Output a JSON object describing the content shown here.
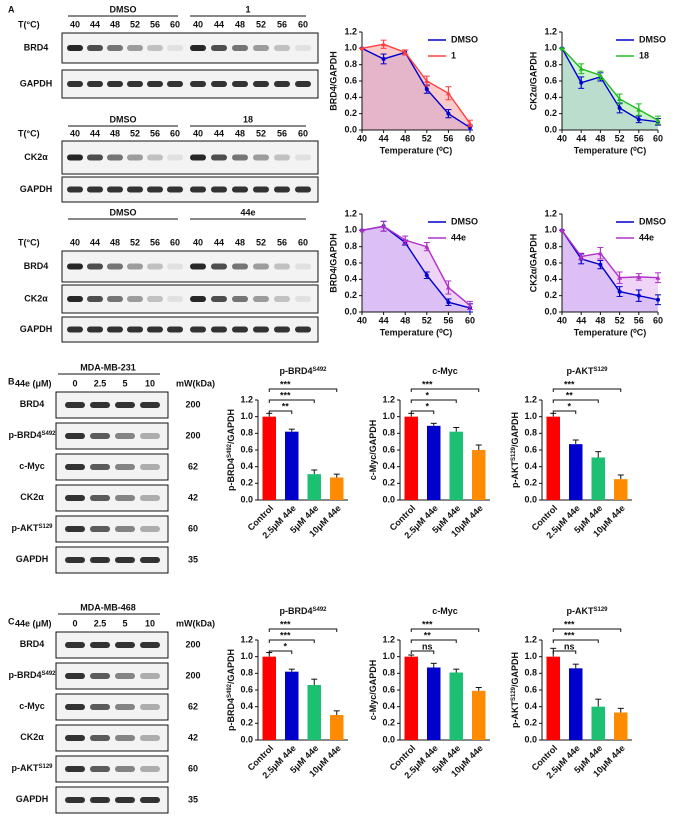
{
  "panel_labels": [
    "A",
    "B",
    "C"
  ],
  "blots_a": [
    {
      "conditions": [
        "DMSO",
        "1"
      ],
      "temp_label": "T(°C)",
      "temps": [
        "40",
        "44",
        "48",
        "52",
        "56",
        "60"
      ],
      "rows": [
        "BRD4",
        "GAPDH"
      ]
    },
    {
      "conditions": [
        "DMSO",
        "18"
      ],
      "temp_label": "T(°C)",
      "temps": [
        "40",
        "44",
        "48",
        "52",
        "56",
        "60"
      ],
      "rows": [
        "CK2α",
        "GAPDH"
      ]
    },
    {
      "conditions": [
        "DMSO",
        "44e"
      ],
      "temp_label": "T(°C)",
      "temps": [
        "40",
        "44",
        "48",
        "52",
        "56",
        "60"
      ],
      "rows": [
        "BRD4",
        "CK2α",
        "GAPDH"
      ]
    }
  ],
  "blots_bc": [
    {
      "cell_line": "MDA-MB-231",
      "dose_label": "44e (μM)",
      "doses": [
        "0",
        "2.5",
        "5",
        "10"
      ],
      "mw_label": "mW(kDa)",
      "rows": [
        {
          "name": "BRD4",
          "mw": "200"
        },
        {
          "name": "p-BRD4",
          "sup": "S492",
          "mw": "200"
        },
        {
          "name": "c-Myc",
          "mw": "62"
        },
        {
          "name": "CK2α",
          "mw": "42"
        },
        {
          "name": "p-AKT",
          "sup": "S129",
          "mw": "60"
        },
        {
          "name": "GAPDH",
          "mw": "35"
        }
      ]
    },
    {
      "cell_line": "MDA-MB-468",
      "dose_label": "44e (μM)",
      "doses": [
        "0",
        "2.5",
        "5",
        "10"
      ],
      "mw_label": "mW(kDa)",
      "rows": [
        {
          "name": "BRD4",
          "mw": "200"
        },
        {
          "name": "p-BRD4",
          "sup": "S492",
          "mw": "200"
        },
        {
          "name": "c-Myc",
          "mw": "62"
        },
        {
          "name": "CK2α",
          "mw": "42"
        },
        {
          "name": "p-AKT",
          "sup": "S129",
          "mw": "60"
        },
        {
          "name": "GAPDH",
          "mw": "35"
        }
      ]
    }
  ],
  "chart_data": [
    {
      "type": "line",
      "ylabel": "BRD4/GAPDH",
      "xlabel": "Temperature (⁰C)",
      "x": [
        40,
        44,
        48,
        52,
        56,
        60
      ],
      "xlim": [
        40,
        60
      ],
      "xticks": [
        40,
        44,
        48,
        52,
        56,
        60
      ],
      "ylim": [
        0,
        1.2
      ],
      "yticks": [
        {
          "value": 0,
          "label": "0.0"
        },
        0.2,
        0.4,
        0.6,
        0.8,
        {
          "value": 1,
          "label": "1.0"
        },
        1.2
      ],
      "series": [
        {
          "name": "DMSO",
          "color": "#0000cc",
          "fill": "#a9a9f5",
          "values": [
            1.0,
            0.87,
            0.95,
            0.5,
            0.2,
            0.03
          ],
          "errors": [
            0,
            0.06,
            0.03,
            0.05,
            0.05,
            0.03
          ]
        },
        {
          "name": "1",
          "color": "#ff4040",
          "fill": "#f5a0a0",
          "values": [
            1.0,
            1.05,
            0.95,
            0.6,
            0.45,
            0.08
          ],
          "errors": [
            0,
            0.05,
            0.03,
            0.06,
            0.08,
            0.04
          ]
        }
      ]
    },
    {
      "type": "line",
      "ylabel": "CK2α/GAPDH",
      "xlabel": "Temperature (⁰C)",
      "x": [
        40,
        44,
        48,
        52,
        56,
        60
      ],
      "xlim": [
        40,
        60
      ],
      "xticks": [
        40,
        44,
        48,
        52,
        56,
        60
      ],
      "ylim": [
        0,
        1.2
      ],
      "yticks": [
        {
          "value": 0,
          "label": "0.0"
        },
        0.2,
        0.4,
        0.6,
        0.8,
        {
          "value": 1,
          "label": "1.0"
        },
        1.2
      ],
      "series": [
        {
          "name": "DMSO",
          "color": "#0000cc",
          "fill": "#a9a9f5",
          "values": [
            1.0,
            0.58,
            0.65,
            0.27,
            0.13,
            0.1
          ],
          "errors": [
            0,
            0.07,
            0.05,
            0.06,
            0.04,
            0.04
          ]
        },
        {
          "name": "18",
          "color": "#22bb22",
          "fill": "#a8e8a8",
          "values": [
            1.0,
            0.75,
            0.67,
            0.38,
            0.25,
            0.12
          ],
          "errors": [
            0,
            0.06,
            0.05,
            0.06,
            0.07,
            0.05
          ]
        }
      ]
    },
    {
      "type": "line",
      "ylabel": "BRD4/GAPDH",
      "xlabel": "Temperature (⁰C)",
      "x": [
        40,
        44,
        48,
        52,
        56,
        60
      ],
      "xlim": [
        40,
        60
      ],
      "xticks": [
        40,
        44,
        48,
        52,
        56,
        60
      ],
      "ylim": [
        0,
        1.2
      ],
      "yticks": [
        {
          "value": 0,
          "label": "0.0"
        },
        0.2,
        0.4,
        0.6,
        0.8,
        {
          "value": 1,
          "label": "1.0"
        },
        1.2
      ],
      "series": [
        {
          "name": "DMSO",
          "color": "#0000cc",
          "fill": "#a9a9f5",
          "values": [
            1.0,
            1.05,
            0.85,
            0.45,
            0.12,
            0.05
          ],
          "errors": [
            0,
            0.06,
            0.03,
            0.04,
            0.04,
            0.05
          ]
        },
        {
          "name": "44e",
          "color": "#b030c8",
          "fill": "#e3b0f0",
          "values": [
            1.0,
            1.05,
            0.88,
            0.8,
            0.3,
            0.08
          ],
          "errors": [
            0,
            0.06,
            0.05,
            0.05,
            0.08,
            0.05
          ]
        }
      ]
    },
    {
      "type": "line",
      "ylabel": "CK2α/GAPDH",
      "xlabel": "Temperature (⁰C)",
      "x": [
        40,
        44,
        48,
        52,
        56,
        60
      ],
      "xlim": [
        40,
        60
      ],
      "xticks": [
        40,
        44,
        48,
        52,
        56,
        60
      ],
      "ylim": [
        0,
        1.2
      ],
      "yticks": [
        {
          "value": 0,
          "label": "0.0"
        },
        0.2,
        0.4,
        0.6,
        0.8,
        {
          "value": 1,
          "label": "1.0"
        },
        1.2
      ],
      "series": [
        {
          "name": "DMSO",
          "color": "#0000cc",
          "fill": "#a9a9f5",
          "values": [
            1.0,
            0.65,
            0.58,
            0.25,
            0.2,
            0.15
          ],
          "errors": [
            0,
            0.06,
            0.05,
            0.06,
            0.07,
            0.06
          ]
        },
        {
          "name": "44e",
          "color": "#b030c8",
          "fill": "#e3b0f0",
          "values": [
            1.0,
            0.68,
            0.72,
            0.42,
            0.43,
            0.42
          ],
          "errors": [
            0,
            0.04,
            0.07,
            0.07,
            0.04,
            0.06
          ]
        }
      ]
    },
    {
      "type": "bar",
      "title": "p-BRD4",
      "title_sup": "S492",
      "ylabel_parts": [
        "p-BRD4",
        "S492",
        "/GAPDH"
      ],
      "categories": [
        "Control",
        "2.5μM 44e",
        "5μM 44e",
        "10μM 44e"
      ],
      "colors": [
        "#ff0000",
        "#0000cc",
        "#1dbf73",
        "#ff8c00"
      ],
      "values": [
        1.0,
        0.82,
        0.31,
        0.27
      ],
      "errors": [
        0.04,
        0.03,
        0.05,
        0.04
      ],
      "significance": [
        "**",
        "***",
        "***"
      ],
      "ylim": [
        0,
        1.2
      ],
      "yticks": [
        {
          "value": 0,
          "label": "0.0"
        },
        0.2,
        0.4,
        0.6,
        0.8,
        {
          "value": 1,
          "label": "1.0"
        },
        1.2
      ]
    },
    {
      "type": "bar",
      "title": "c-Myc",
      "ylabel_parts": [
        "c-Myc/GAPDH"
      ],
      "categories": [
        "Control",
        "2.5μM 44e",
        "5μM 44e",
        "10μM 44e"
      ],
      "colors": [
        "#ff0000",
        "#0000cc",
        "#1dbf73",
        "#ff8c00"
      ],
      "values": [
        1.0,
        0.89,
        0.82,
        0.6
      ],
      "errors": [
        0.04,
        0.03,
        0.05,
        0.06
      ],
      "significance": [
        "*",
        "*",
        "***"
      ],
      "ylim": [
        0,
        1.2
      ],
      "yticks": [
        {
          "value": 0,
          "label": "0.0"
        },
        0.2,
        0.4,
        0.6,
        0.8,
        {
          "value": 1,
          "label": "1.0"
        },
        1.2
      ]
    },
    {
      "type": "bar",
      "title": "p-AKT",
      "title_sup": "S129",
      "ylabel_parts": [
        "p-AKT",
        "S129",
        "/GAPDH"
      ],
      "categories": [
        "Control",
        "2.5μM 44e",
        "5μM 44e",
        "10μM 44e"
      ],
      "colors": [
        "#ff0000",
        "#0000cc",
        "#1dbf73",
        "#ff8c00"
      ],
      "values": [
        1.0,
        0.67,
        0.51,
        0.25
      ],
      "errors": [
        0.04,
        0.05,
        0.07,
        0.05
      ],
      "significance": [
        "*",
        "**",
        "***"
      ],
      "ylim": [
        0,
        1.2
      ],
      "yticks": [
        {
          "value": 0,
          "label": "0.0"
        },
        0.2,
        0.4,
        0.6,
        0.8,
        {
          "value": 1,
          "label": "1.0"
        },
        1.2
      ]
    },
    {
      "type": "bar",
      "title": "p-BRD4",
      "title_sup": "S492",
      "ylabel_parts": [
        "p-BRD4",
        "S492",
        "/GAPDH"
      ],
      "categories": [
        "Control",
        "2.5μM 44e",
        "5μM 44e",
        "10μM 44e"
      ],
      "colors": [
        "#ff0000",
        "#0000cc",
        "#1dbf73",
        "#ff8c00"
      ],
      "values": [
        1.0,
        0.82,
        0.66,
        0.3
      ],
      "errors": [
        0.05,
        0.03,
        0.07,
        0.05
      ],
      "significance": [
        "*",
        "***",
        "***"
      ],
      "ylim": [
        0,
        1.2
      ],
      "yticks": [
        {
          "value": 0,
          "label": "0.0"
        },
        0.2,
        0.4,
        0.6,
        0.8,
        {
          "value": 1,
          "label": "1.0"
        },
        1.2
      ]
    },
    {
      "type": "bar",
      "title": "c-Myc",
      "ylabel_parts": [
        "c-Myc/GAPDH"
      ],
      "categories": [
        "Control",
        "2.5μM 44e",
        "5μM 44e",
        "10μM 44e"
      ],
      "colors": [
        "#ff0000",
        "#0000cc",
        "#1dbf73",
        "#ff8c00"
      ],
      "values": [
        1.0,
        0.87,
        0.81,
        0.59
      ],
      "errors": [
        0.02,
        0.05,
        0.04,
        0.04
      ],
      "significance": [
        "ns",
        "**",
        "***"
      ],
      "ylim": [
        0,
        1.2
      ],
      "yticks": [
        {
          "value": 0,
          "label": "0.0"
        },
        0.2,
        0.4,
        0.6,
        0.8,
        {
          "value": 1,
          "label": "1.0"
        },
        1.2
      ]
    },
    {
      "type": "bar",
      "title": "p-AKT",
      "title_sup": "S129",
      "ylabel_parts": [
        "p-AKT",
        "S129",
        "/GAPDH"
      ],
      "categories": [
        "Control",
        "2.5μM 44e",
        "5μM 44e",
        "10μM 44e"
      ],
      "colors": [
        "#ff0000",
        "#0000cc",
        "#1dbf73",
        "#ff8c00"
      ],
      "values": [
        1.0,
        0.86,
        0.4,
        0.33
      ],
      "errors": [
        0.1,
        0.05,
        0.09,
        0.05
      ],
      "significance": [
        "ns",
        "***",
        "***"
      ],
      "ylim": [
        0,
        1.2
      ],
      "yticks": [
        {
          "value": 0,
          "label": "0.0"
        },
        0.2,
        0.4,
        0.6,
        0.8,
        {
          "value": 1,
          "label": "1.0"
        },
        1.2
      ]
    }
  ]
}
